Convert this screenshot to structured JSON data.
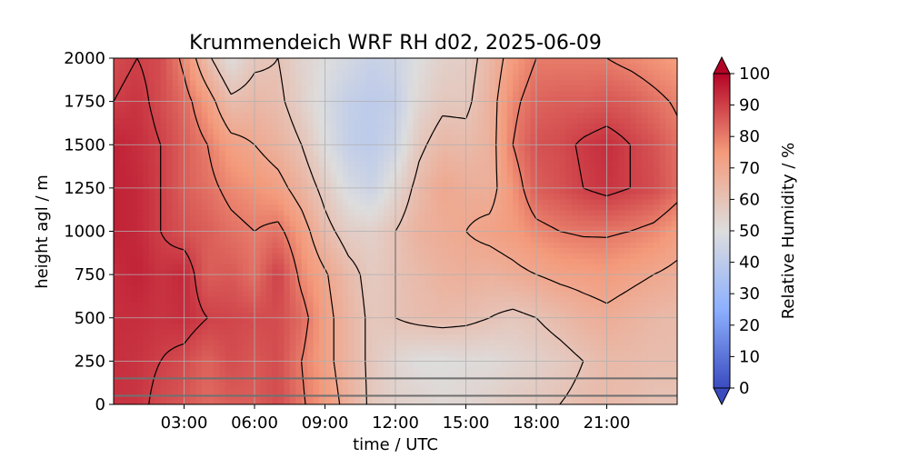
{
  "chart_data": {
    "type": "heatmap",
    "title": "Krummendeich WRF RH d02, 2025-06-09",
    "xlabel": "time / UTC",
    "ylabel": "height agl / m",
    "colorbar_label": "Relative Humidity / %",
    "colormap": "coolwarm",
    "xlim": [
      0,
      24
    ],
    "ylim": [
      0,
      2000
    ],
    "clim": [
      0,
      100
    ],
    "x_ticks": [
      3,
      6,
      9,
      12,
      15,
      18,
      21
    ],
    "x_tick_labels": [
      "03:00",
      "06:00",
      "09:00",
      "12:00",
      "15:00",
      "18:00",
      "21:00"
    ],
    "y_ticks": [
      0,
      250,
      500,
      750,
      1000,
      1250,
      1500,
      1750,
      2000
    ],
    "y_tick_labels": [
      "0",
      "250",
      "500",
      "750",
      "1000",
      "1250",
      "1500",
      "1750",
      "2000"
    ],
    "colorbar_ticks": [
      0,
      10,
      20,
      30,
      40,
      50,
      60,
      70,
      80,
      90,
      100
    ],
    "colorbar_tick_labels": [
      "0",
      "10",
      "20",
      "30",
      "40",
      "50",
      "60",
      "70",
      "80",
      "90",
      "100"
    ],
    "grid": true,
    "contour_levels": [
      60,
      70,
      80,
      90
    ],
    "horizontal_lines_m": [
      50,
      150
    ],
    "time_hours": [
      0,
      1,
      2,
      3,
      4,
      5,
      6,
      7,
      8,
      9,
      10,
      11,
      12,
      13,
      14,
      15,
      16,
      17,
      18,
      19,
      20,
      21,
      22,
      23,
      24
    ],
    "heights_m": [
      0,
      250,
      500,
      750,
      1000,
      1250,
      1500,
      1750,
      2000
    ],
    "rh_percent": [
      [
        92,
        92,
        88,
        86,
        83,
        85,
        85,
        88,
        81,
        75,
        67,
        58,
        55,
        54,
        52,
        53,
        55,
        57,
        58,
        60,
        62,
        63,
        62,
        60,
        60
      ],
      [
        93,
        92,
        90,
        88,
        84,
        88,
        86,
        88,
        80,
        73,
        65,
        58,
        53,
        50,
        50,
        51,
        51,
        53,
        55,
        57,
        60,
        63,
        63,
        62,
        62
      ],
      [
        93,
        93,
        92,
        93,
        90,
        89,
        88,
        88,
        83,
        73,
        65,
        58,
        60,
        62,
        63,
        62,
        60,
        58,
        60,
        63,
        66,
        68,
        66,
        64,
        63
      ],
      [
        93,
        95,
        92,
        94,
        85,
        86,
        82,
        90,
        78,
        71,
        63,
        57,
        60,
        63,
        66,
        67,
        66,
        68,
        70,
        72,
        73,
        74,
        72,
        70,
        68
      ],
      [
        95,
        94,
        90,
        87,
        85,
        82,
        80,
        82,
        74,
        63,
        56,
        55,
        60,
        66,
        68,
        70,
        72,
        74,
        78,
        80,
        81,
        81,
        80,
        78,
        74
      ],
      [
        95,
        94,
        90,
        85,
        82,
        78,
        76,
        73,
        66,
        57,
        48,
        44,
        53,
        63,
        70,
        68,
        67,
        76,
        85,
        87,
        90,
        92,
        90,
        88,
        83
      ],
      [
        95,
        93,
        90,
        85,
        80,
        73,
        70,
        66,
        60,
        50,
        42,
        40,
        45,
        58,
        64,
        63,
        66,
        80,
        87,
        88,
        91,
        93,
        90,
        87,
        82
      ],
      [
        90,
        92,
        88,
        83,
        74,
        62,
        64,
        62,
        55,
        48,
        42,
        40,
        42,
        53,
        58,
        58,
        66,
        78,
        84,
        85,
        85,
        86,
        85,
        82,
        79
      ],
      [
        88,
        90,
        88,
        78,
        62,
        50,
        58,
        60,
        54,
        50,
        47,
        43,
        45,
        50,
        55,
        56,
        64,
        74,
        80,
        80,
        80,
        80,
        78,
        76,
        74
      ]
    ]
  }
}
